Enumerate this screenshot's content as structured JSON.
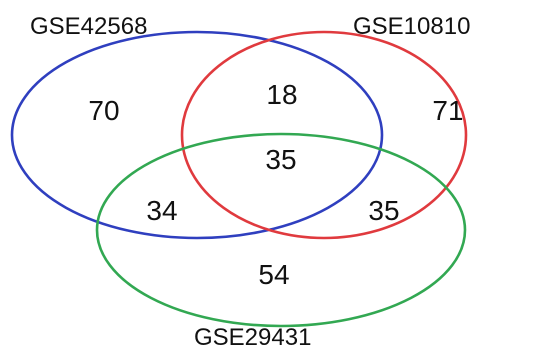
{
  "venn": {
    "sets": [
      {
        "name": "GSE42568",
        "color": "#2f3fbf"
      },
      {
        "name": "GSE10810",
        "color": "#e03a3e"
      },
      {
        "name": "GSE29431",
        "color": "#32a852"
      }
    ],
    "regions": {
      "only_gse42568": "70",
      "only_gse10810": "71",
      "only_gse29431": "54",
      "gse42568_gse10810": "18",
      "gse42568_gse29431": "34",
      "gse10810_gse29431": "35",
      "all_three": "35"
    }
  }
}
